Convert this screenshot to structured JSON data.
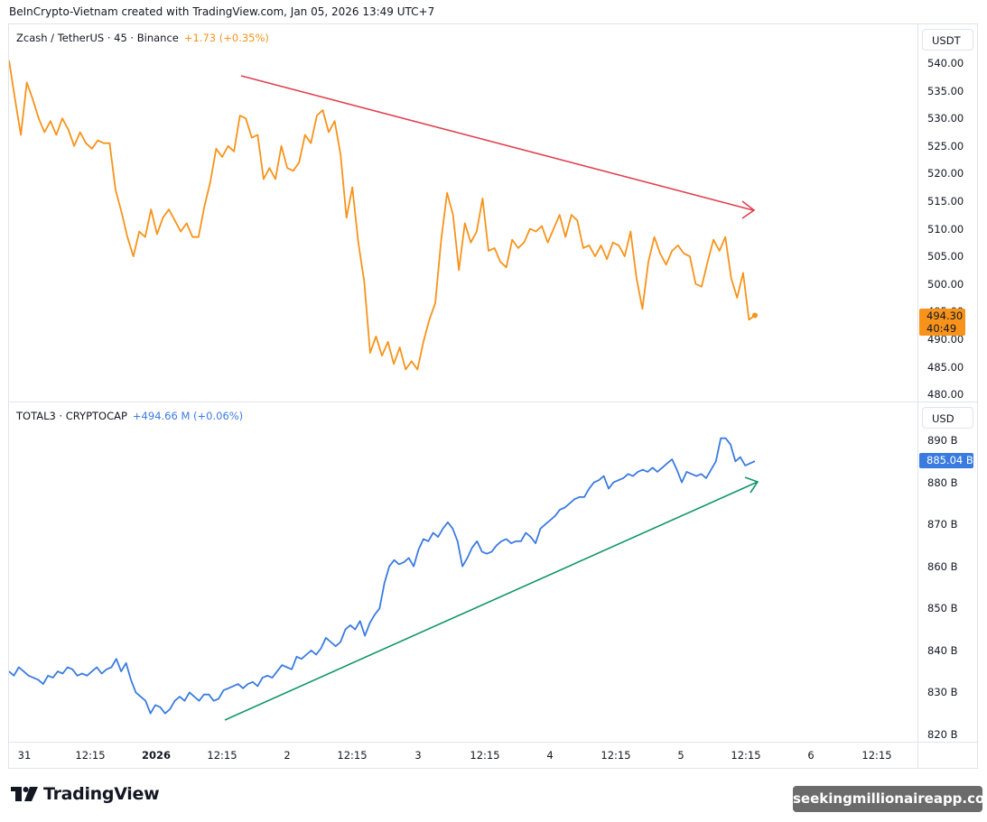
{
  "header": {
    "credit": "BeInCrypto-Vietnam created with TradingView.com, Jan 05, 2026 13:49 UTC+7"
  },
  "top_pane": {
    "symbol": "Zcash / TetherUS · 45 · Binance",
    "change": "+1.73 (+0.35%)",
    "currency": "USDT",
    "price_label": "494.30",
    "countdown": "40:49",
    "y_ticks": [
      "540.00",
      "535.00",
      "530.00",
      "525.00",
      "520.00",
      "515.00",
      "510.00",
      "505.00",
      "500.00",
      "495.00",
      "490.00",
      "485.00",
      "480.00"
    ],
    "line_color": "#f7931a",
    "trend_color": "#e0404f"
  },
  "bottom_pane": {
    "symbol": "TOTAL3 · CRYPTOCAP",
    "change": "+494.66 M (+0.06%)",
    "currency": "USD",
    "price_label": "885.04 B",
    "y_ticks": [
      "890 B",
      "880 B",
      "870 B",
      "860 B",
      "850 B",
      "840 B",
      "830 B",
      "820 B"
    ],
    "line_color": "#3a7be0",
    "trend_color": "#12956b"
  },
  "time_axis": {
    "labels": [
      "31",
      "12:15",
      "2026",
      "12:15",
      "2",
      "12:15",
      "3",
      "12:15",
      "4",
      "12:15",
      "5",
      "12:15",
      "6",
      "12:15"
    ]
  },
  "footer": {
    "logo_text": "TradingView",
    "watermark": "seekingmillionaireapp.com"
  },
  "chart_data": [
    {
      "type": "line",
      "title": "Zcash / TetherUS · 45 · Binance",
      "xlabel": "",
      "ylabel": "USDT",
      "ylim": [
        480,
        540
      ],
      "x": [
        "31",
        "12:15",
        "2026",
        "12:15",
        "2",
        "12:15",
        "3",
        "12:15",
        "4",
        "12:15",
        "5",
        "12:15"
      ],
      "series": [
        {
          "name": "ZEC/USDT",
          "values": [
            540.5,
            533.5,
            527,
            536.5,
            533.5,
            530,
            527.5,
            529.5,
            527,
            530,
            528,
            525,
            527.5,
            525.5,
            524.5,
            526,
            525.5,
            525.5,
            517,
            513,
            508.5,
            505,
            509.5,
            508.5,
            513.5,
            509,
            512,
            513.5,
            511.5,
            509.5,
            511,
            508.5,
            508.5,
            514,
            518.5,
            524.5,
            523,
            525,
            524,
            530.5,
            530,
            526.5,
            527,
            519,
            521,
            519,
            525,
            521,
            520.5,
            522,
            527,
            525.5,
            530.5,
            531.5,
            527.5,
            529.5,
            523.5,
            512,
            517.5,
            507.5,
            500.5,
            487.5,
            490.5,
            487,
            489.5,
            485.5,
            488.5,
            484.5,
            486,
            484.5,
            489.5,
            493.5,
            496.5,
            508,
            516.5,
            512.5,
            502.5,
            511,
            507.5,
            509.5,
            515.5,
            506,
            506.5,
            504,
            503,
            508,
            506.5,
            507.5,
            510,
            509.5,
            510.5,
            507.5,
            510,
            512.5,
            508.5,
            512.5,
            511.5,
            506.5,
            507,
            505,
            507,
            504.5,
            507.5,
            507,
            505,
            509.5,
            501,
            495.5,
            504,
            508.5,
            505.5,
            503.5,
            506,
            507,
            505.5,
            505,
            500,
            499.5,
            504,
            508,
            506,
            508.5,
            501,
            497.5,
            502,
            493.5,
            494.3
          ]
        }
      ],
      "annotations": [
        "Descending trend arrow (red) from ~537 near Jan 1 12:15 down to ~513 near Jan 5 12:15"
      ]
    },
    {
      "type": "line",
      "title": "TOTAL3 · CRYPTOCAP",
      "xlabel": "",
      "ylabel": "USD",
      "ylim": [
        820,
        895
      ],
      "x": [
        "31",
        "12:15",
        "2026",
        "12:15",
        "2",
        "12:15",
        "3",
        "12:15",
        "4",
        "12:15",
        "5",
        "12:15"
      ],
      "series": [
        {
          "name": "TOTAL3 (B)",
          "values": [
            835,
            834,
            836,
            835,
            834,
            833.5,
            833,
            832,
            834,
            833.5,
            835,
            834.5,
            836,
            835.5,
            834,
            834.5,
            834,
            835,
            836,
            834.5,
            835.5,
            836,
            838,
            835,
            837,
            833,
            830,
            829,
            828,
            825,
            827,
            826.5,
            825,
            826,
            828,
            829,
            828,
            830,
            829,
            828,
            829.5,
            829.5,
            828,
            828.5,
            830.5,
            831,
            831.5,
            832,
            831,
            832,
            832.5,
            831.5,
            833.5,
            834,
            833.5,
            835,
            836.5,
            836,
            835.5,
            838.5,
            838,
            839,
            840,
            839,
            840.5,
            843,
            842,
            841,
            842,
            845,
            846,
            845,
            847,
            843.5,
            846.5,
            848.5,
            850,
            856,
            860,
            861.5,
            860.5,
            861,
            862,
            860,
            864,
            866.5,
            866,
            868,
            867,
            869,
            870.5,
            869,
            866,
            860,
            862,
            864.5,
            866,
            863.5,
            863,
            863.5,
            865,
            866,
            866.5,
            865.5,
            866,
            866,
            868,
            867,
            865.5,
            869,
            870,
            871,
            872,
            873.5,
            874,
            875,
            876,
            876.5,
            876.5,
            878.5,
            880,
            880.5,
            881.5,
            878.5,
            880,
            880.5,
            881,
            882,
            881.5,
            882.5,
            883,
            882.5,
            883.5,
            882.5,
            883.5,
            884.5,
            885.5,
            883,
            880,
            882.5,
            882,
            881.5,
            882,
            881,
            883,
            885,
            890.5,
            890.5,
            889,
            885,
            886,
            884,
            884.5,
            885.04
          ]
        }
      ],
      "annotations": [
        "Ascending trend arrow (green) from ~826 near Jan 1 12:15 up to ~880 near Jan 5 12:15"
      ]
    }
  ]
}
